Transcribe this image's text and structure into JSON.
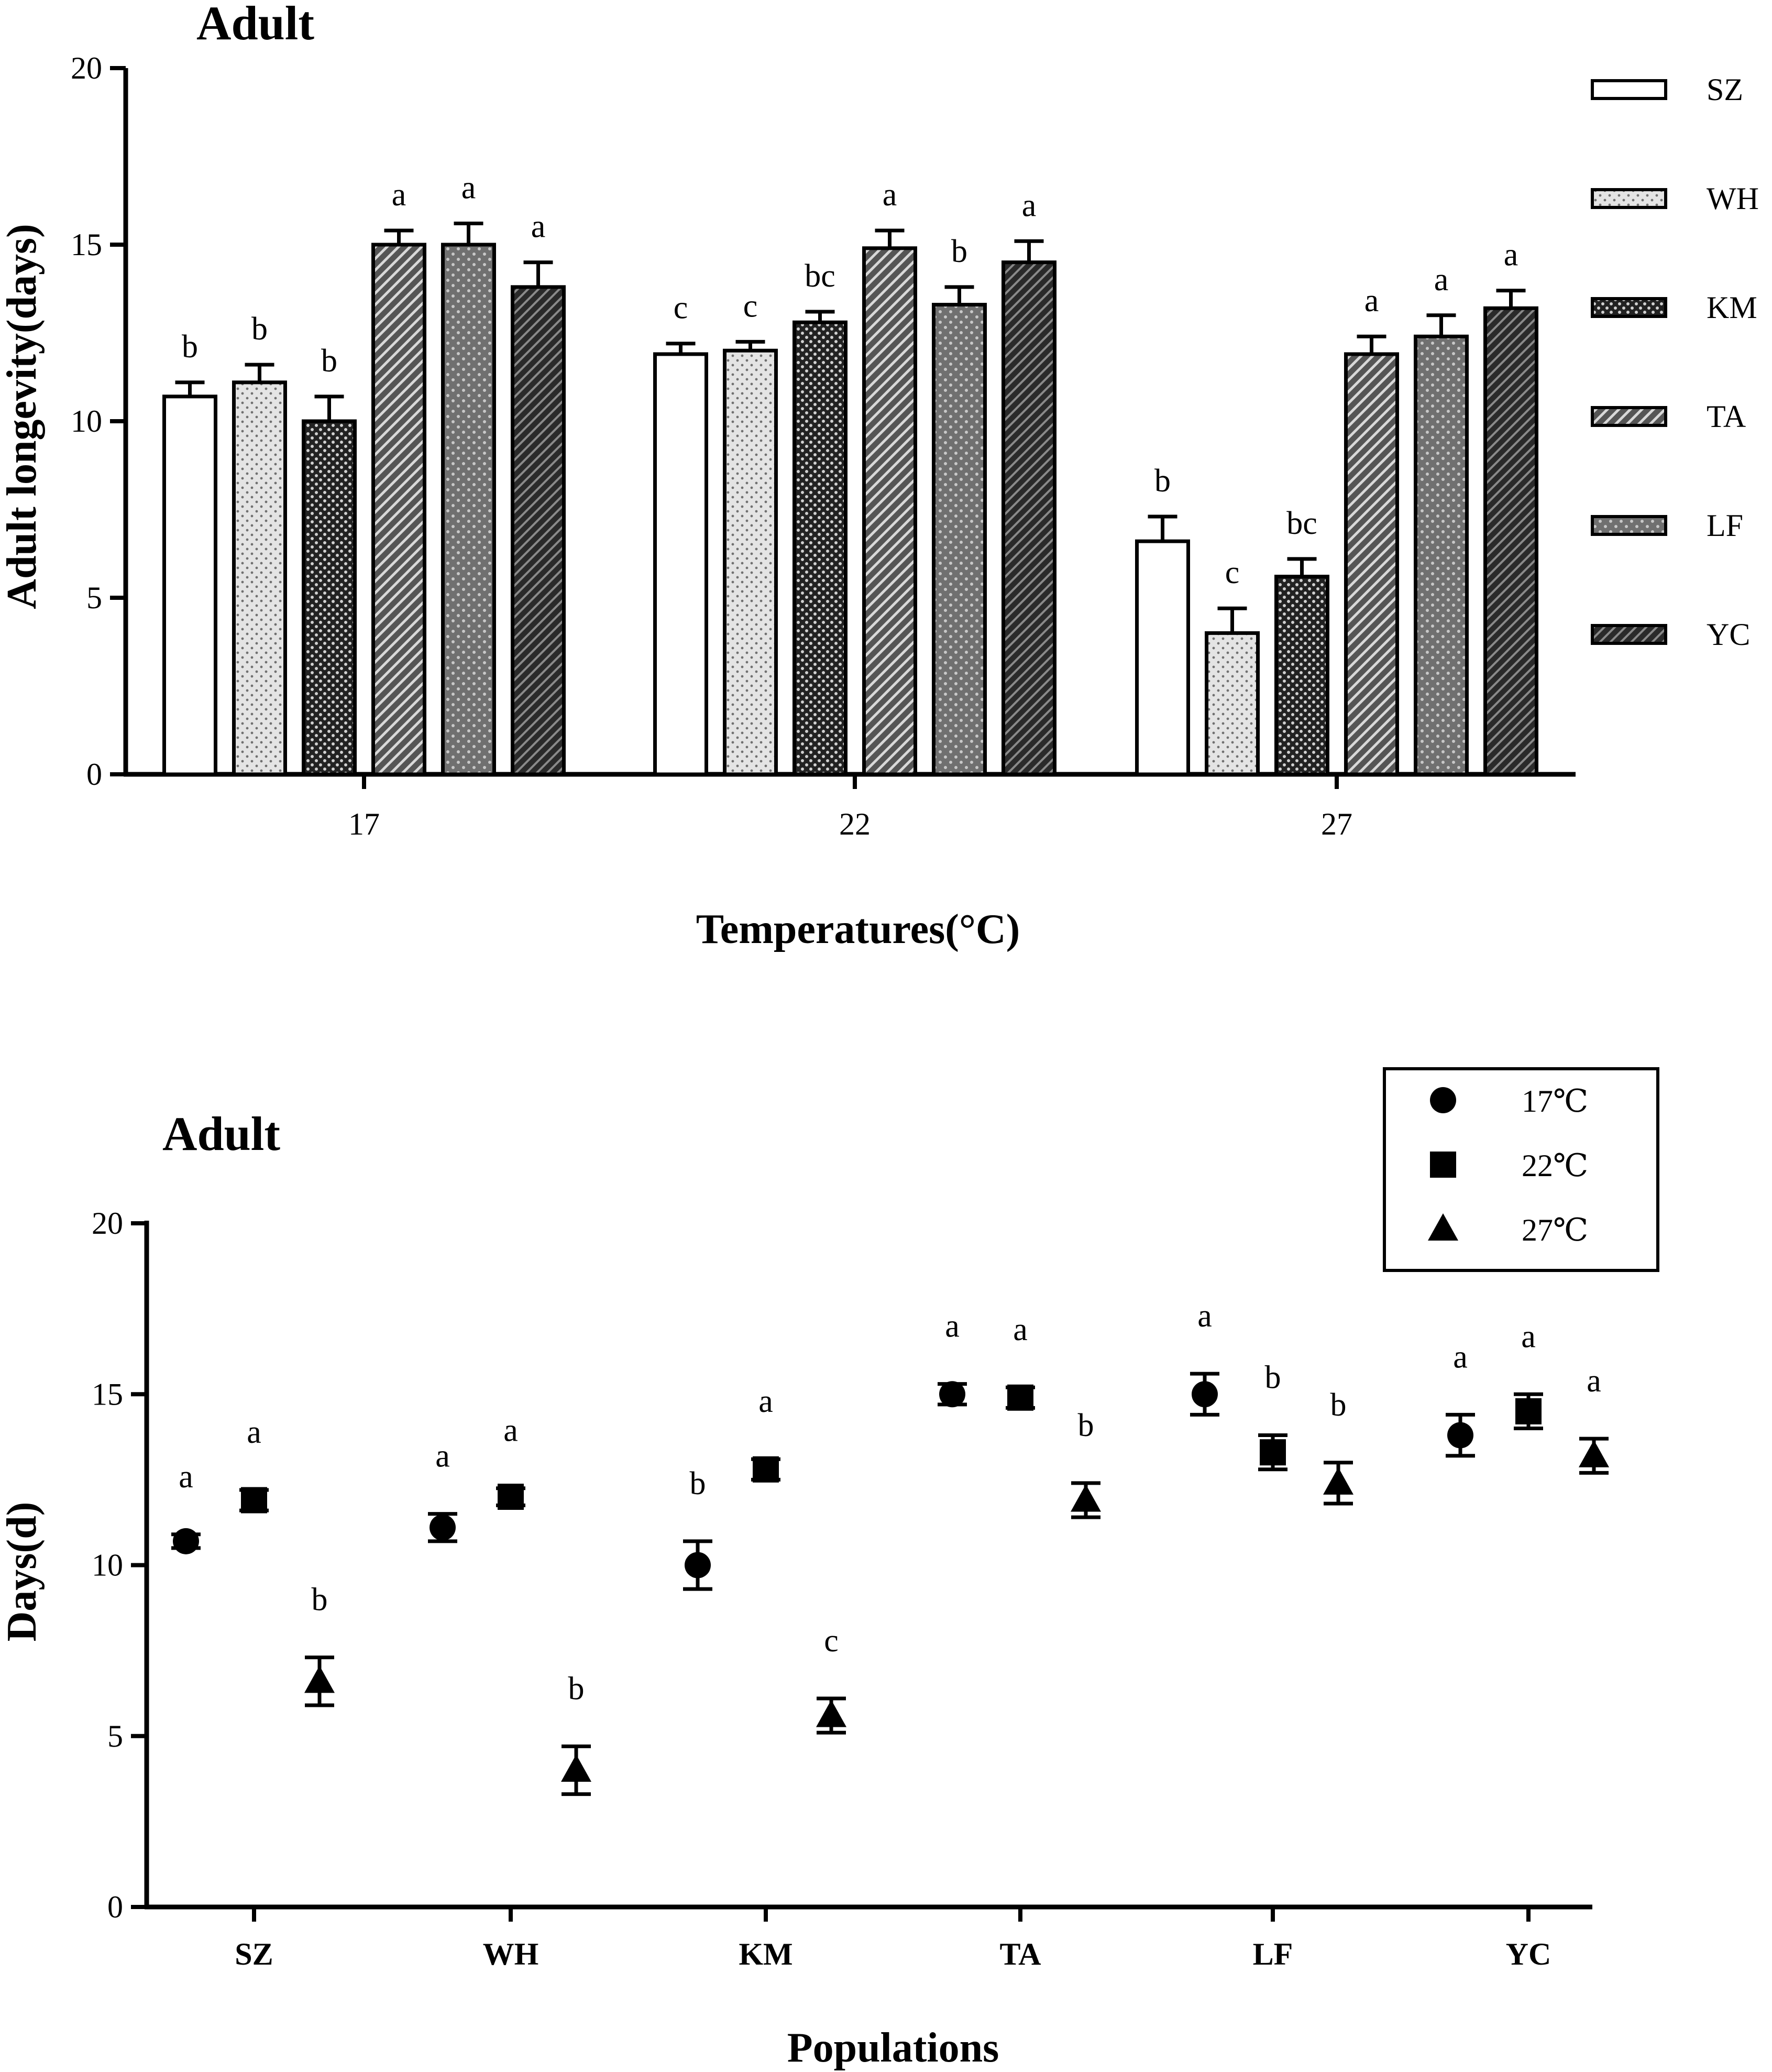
{
  "colors": {
    "SZ": "#ffffff",
    "WH": "#e0e0e0",
    "KM": "#3a3a3a",
    "TA": "#808080",
    "LF": "#6a6a6a",
    "YC": "#2e2e2e",
    "ink": "#000000"
  },
  "chart_data": [
    {
      "type": "bar",
      "title": "Adult",
      "xlabel": "Temperatures(°C)",
      "ylabel": "Adult longevity(days)",
      "ylim": [
        0,
        20
      ],
      "yticks": [
        "0",
        "5",
        "10",
        "15",
        "20"
      ],
      "categories": [
        "17",
        "22",
        "27"
      ],
      "series": [
        {
          "name": "SZ",
          "pattern": "blank",
          "values": [
            10.7,
            11.9,
            6.6
          ],
          "errors": [
            0.4,
            0.3,
            0.7
          ],
          "letters": [
            "b",
            "c",
            "b"
          ]
        },
        {
          "name": "WH",
          "pattern": "fine-dots",
          "values": [
            11.1,
            12.0,
            4.0
          ],
          "errors": [
            0.5,
            0.25,
            0.7
          ],
          "letters": [
            "b",
            "c",
            "c"
          ]
        },
        {
          "name": "KM",
          "pattern": "dense-dots",
          "values": [
            10.0,
            12.8,
            5.6
          ],
          "errors": [
            0.7,
            0.3,
            0.5
          ],
          "letters": [
            "b",
            "bc",
            "bc"
          ]
        },
        {
          "name": "TA",
          "pattern": "dashes",
          "values": [
            15.0,
            14.9,
            11.9
          ],
          "errors": [
            0.4,
            0.5,
            0.5
          ],
          "letters": [
            "a",
            "a",
            "a"
          ]
        },
        {
          "name": "LF",
          "pattern": "coarse-dots",
          "values": [
            15.0,
            13.3,
            12.4
          ],
          "errors": [
            0.6,
            0.5,
            0.6
          ],
          "letters": [
            "a",
            "b",
            "a"
          ]
        },
        {
          "name": "YC",
          "pattern": "diagonal",
          "values": [
            13.8,
            14.5,
            13.2
          ],
          "errors": [
            0.7,
            0.6,
            0.5
          ],
          "letters": [
            "a",
            "a",
            "a"
          ]
        }
      ],
      "legend": [
        "SZ",
        "WH",
        "KM",
        "TA",
        "LF",
        "YC"
      ],
      "legend_position": "right"
    },
    {
      "type": "scatter",
      "title": "Adult",
      "xlabel": "Populations",
      "ylabel": "Days(d)",
      "ylim": [
        0,
        20
      ],
      "yticks": [
        "0",
        "5",
        "10",
        "15",
        "20"
      ],
      "categories": [
        "SZ",
        "WH",
        "KM",
        "TA",
        "LF",
        "YC"
      ],
      "series": [
        {
          "name": "17℃",
          "marker": "circle",
          "values": [
            10.7,
            11.1,
            10.0,
            15.0,
            15.0,
            13.8
          ],
          "errors": [
            0.2,
            0.4,
            0.7,
            0.3,
            0.6,
            0.6
          ],
          "letters": [
            "a",
            "a",
            "b",
            "a",
            "a",
            "a"
          ]
        },
        {
          "name": "22℃",
          "marker": "square",
          "values": [
            11.9,
            12.0,
            12.8,
            14.9,
            13.3,
            14.5
          ],
          "errors": [
            0.3,
            0.25,
            0.3,
            0.3,
            0.5,
            0.5
          ],
          "letters": [
            "a",
            "a",
            "a",
            "a",
            "b",
            "a"
          ]
        },
        {
          "name": "27℃",
          "marker": "triangle",
          "values": [
            6.6,
            4.0,
            5.6,
            11.9,
            12.4,
            13.2
          ],
          "errors": [
            0.7,
            0.7,
            0.5,
            0.5,
            0.6,
            0.5
          ],
          "letters": [
            "b",
            "b",
            "c",
            "b",
            "b",
            "a"
          ]
        }
      ],
      "legend": [
        "17℃",
        "22℃",
        "27℃"
      ],
      "legend_position": "top-right"
    }
  ]
}
